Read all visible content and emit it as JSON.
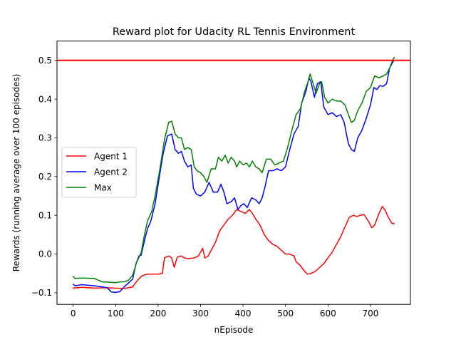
{
  "chart_data": {
    "type": "line",
    "title": "Reward plot for Udacity RL Tennis Environment",
    "xlabel": "nEpisode",
    "ylabel": "Rewards (running average over 100 episodes)",
    "xlim": [
      -38,
      794
    ],
    "ylim": [
      -0.13,
      0.55
    ],
    "xticks": [
      0,
      100,
      200,
      300,
      400,
      500,
      600,
      700
    ],
    "xtick_labels": [
      "0",
      "100",
      "200",
      "300",
      "400",
      "500",
      "600",
      "700"
    ],
    "yticks": [
      -0.1,
      0.0,
      0.1,
      0.2,
      0.3,
      0.4,
      0.5
    ],
    "ytick_labels": [
      "−0.1",
      "0.0",
      "0.1",
      "0.2",
      "0.3",
      "0.4",
      "0.5"
    ],
    "grid": false,
    "legend_position": "center-left",
    "reference_line": {
      "y": 0.5,
      "color": "#ff0000"
    },
    "series": [
      {
        "name": "Agent 1",
        "color": "#ff0000",
        "points": [
          [
            0,
            -0.088
          ],
          [
            20,
            -0.086
          ],
          [
            50,
            -0.088
          ],
          [
            80,
            -0.087
          ],
          [
            100,
            -0.088
          ],
          [
            120,
            -0.089
          ],
          [
            140,
            -0.085
          ],
          [
            150,
            -0.07
          ],
          [
            160,
            -0.058
          ],
          [
            170,
            -0.053
          ],
          [
            180,
            -0.052
          ],
          [
            200,
            -0.052
          ],
          [
            210,
            -0.05
          ],
          [
            215,
            -0.01
          ],
          [
            225,
            -0.005
          ],
          [
            232,
            -0.01
          ],
          [
            238,
            -0.034
          ],
          [
            245,
            -0.008
          ],
          [
            255,
            -0.005
          ],
          [
            262,
            -0.01
          ],
          [
            270,
            -0.012
          ],
          [
            285,
            -0.01
          ],
          [
            295,
            -0.005
          ],
          [
            305,
            0.015
          ],
          [
            310,
            -0.01
          ],
          [
            318,
            -0.005
          ],
          [
            325,
            0.01
          ],
          [
            335,
            0.03
          ],
          [
            345,
            0.06
          ],
          [
            355,
            0.075
          ],
          [
            365,
            0.09
          ],
          [
            375,
            0.1
          ],
          [
            385,
            0.115
          ],
          [
            395,
            0.11
          ],
          [
            405,
            0.105
          ],
          [
            415,
            0.115
          ],
          [
            422,
            0.105
          ],
          [
            430,
            0.09
          ],
          [
            440,
            0.075
          ],
          [
            450,
            0.05
          ],
          [
            460,
            0.035
          ],
          [
            470,
            0.025
          ],
          [
            480,
            0.02
          ],
          [
            490,
            0.01
          ],
          [
            500,
            0.0
          ],
          [
            510,
            0.0
          ],
          [
            520,
            -0.005
          ],
          [
            525,
            -0.02
          ],
          [
            535,
            -0.03
          ],
          [
            545,
            -0.045
          ],
          [
            552,
            -0.052
          ],
          [
            560,
            -0.05
          ],
          [
            570,
            -0.045
          ],
          [
            580,
            -0.035
          ],
          [
            590,
            -0.025
          ],
          [
            600,
            -0.01
          ],
          [
            610,
            0.005
          ],
          [
            620,
            0.025
          ],
          [
            630,
            0.045
          ],
          [
            640,
            0.07
          ],
          [
            650,
            0.095
          ],
          [
            660,
            0.1
          ],
          [
            668,
            0.097
          ],
          [
            676,
            0.1
          ],
          [
            685,
            0.102
          ],
          [
            695,
            0.085
          ],
          [
            703,
            0.068
          ],
          [
            710,
            0.075
          ],
          [
            720,
            0.105
          ],
          [
            728,
            0.123
          ],
          [
            735,
            0.112
          ],
          [
            742,
            0.095
          ],
          [
            750,
            0.08
          ],
          [
            756,
            0.078
          ]
        ]
      },
      {
        "name": "Agent 2",
        "color": "#0000ff",
        "points": [
          [
            0,
            -0.078
          ],
          [
            5,
            -0.082
          ],
          [
            20,
            -0.079
          ],
          [
            50,
            -0.082
          ],
          [
            70,
            -0.085
          ],
          [
            80,
            -0.087
          ],
          [
            90,
            -0.098
          ],
          [
            100,
            -0.099
          ],
          [
            110,
            -0.097
          ],
          [
            120,
            -0.085
          ],
          [
            130,
            -0.075
          ],
          [
            140,
            -0.065
          ],
          [
            148,
            -0.025
          ],
          [
            155,
            -0.005
          ],
          [
            160,
            -0.003
          ],
          [
            168,
            0.035
          ],
          [
            175,
            0.065
          ],
          [
            183,
            0.085
          ],
          [
            193,
            0.13
          ],
          [
            203,
            0.2
          ],
          [
            212,
            0.26
          ],
          [
            222,
            0.305
          ],
          [
            232,
            0.31
          ],
          [
            240,
            0.27
          ],
          [
            248,
            0.26
          ],
          [
            255,
            0.265
          ],
          [
            262,
            0.24
          ],
          [
            270,
            0.225
          ],
          [
            278,
            0.23
          ],
          [
            283,
            0.17
          ],
          [
            290,
            0.155
          ],
          [
            300,
            0.15
          ],
          [
            310,
            0.16
          ],
          [
            320,
            0.185
          ],
          [
            330,
            0.16
          ],
          [
            340,
            0.16
          ],
          [
            348,
            0.18
          ],
          [
            355,
            0.16
          ],
          [
            362,
            0.13
          ],
          [
            372,
            0.135
          ],
          [
            380,
            0.145
          ],
          [
            388,
            0.115
          ],
          [
            395,
            0.125
          ],
          [
            402,
            0.13
          ],
          [
            410,
            0.12
          ],
          [
            420,
            0.145
          ],
          [
            430,
            0.14
          ],
          [
            438,
            0.13
          ],
          [
            445,
            0.145
          ],
          [
            452,
            0.175
          ],
          [
            460,
            0.215
          ],
          [
            470,
            0.215
          ],
          [
            480,
            0.22
          ],
          [
            490,
            0.215
          ],
          [
            500,
            0.225
          ],
          [
            510,
            0.27
          ],
          [
            520,
            0.31
          ],
          [
            530,
            0.33
          ],
          [
            538,
            0.39
          ],
          [
            548,
            0.42
          ],
          [
            555,
            0.455
          ],
          [
            560,
            0.445
          ],
          [
            568,
            0.405
          ],
          [
            575,
            0.44
          ],
          [
            583,
            0.445
          ],
          [
            590,
            0.38
          ],
          [
            600,
            0.36
          ],
          [
            610,
            0.365
          ],
          [
            620,
            0.355
          ],
          [
            630,
            0.36
          ],
          [
            638,
            0.34
          ],
          [
            648,
            0.285
          ],
          [
            655,
            0.27
          ],
          [
            662,
            0.265
          ],
          [
            670,
            0.3
          ],
          [
            680,
            0.32
          ],
          [
            690,
            0.35
          ],
          [
            700,
            0.385
          ],
          [
            708,
            0.43
          ],
          [
            715,
            0.425
          ],
          [
            722,
            0.435
          ],
          [
            730,
            0.433
          ],
          [
            738,
            0.44
          ],
          [
            745,
            0.48
          ],
          [
            752,
            0.495
          ],
          [
            756,
            0.5
          ]
        ]
      },
      {
        "name": "Max",
        "color": "#008000",
        "points": [
          [
            0,
            -0.058
          ],
          [
            5,
            -0.063
          ],
          [
            20,
            -0.062
          ],
          [
            50,
            -0.063
          ],
          [
            60,
            -0.068
          ],
          [
            70,
            -0.072
          ],
          [
            90,
            -0.073
          ],
          [
            100,
            -0.074
          ],
          [
            110,
            -0.072
          ],
          [
            120,
            -0.072
          ],
          [
            130,
            -0.068
          ],
          [
            140,
            -0.055
          ],
          [
            150,
            -0.02
          ],
          [
            160,
            0.003
          ],
          [
            168,
            0.05
          ],
          [
            175,
            0.085
          ],
          [
            185,
            0.11
          ],
          [
            193,
            0.15
          ],
          [
            205,
            0.225
          ],
          [
            215,
            0.295
          ],
          [
            225,
            0.34
          ],
          [
            232,
            0.343
          ],
          [
            240,
            0.31
          ],
          [
            248,
            0.3
          ],
          [
            255,
            0.3
          ],
          [
            262,
            0.27
          ],
          [
            270,
            0.275
          ],
          [
            278,
            0.27
          ],
          [
            285,
            0.225
          ],
          [
            292,
            0.215
          ],
          [
            300,
            0.21
          ],
          [
            308,
            0.2
          ],
          [
            315,
            0.185
          ],
          [
            325,
            0.22
          ],
          [
            335,
            0.22
          ],
          [
            342,
            0.25
          ],
          [
            350,
            0.24
          ],
          [
            358,
            0.255
          ],
          [
            365,
            0.235
          ],
          [
            372,
            0.25
          ],
          [
            380,
            0.24
          ],
          [
            385,
            0.225
          ],
          [
            392,
            0.24
          ],
          [
            400,
            0.23
          ],
          [
            408,
            0.235
          ],
          [
            415,
            0.225
          ],
          [
            422,
            0.24
          ],
          [
            430,
            0.225
          ],
          [
            438,
            0.22
          ],
          [
            445,
            0.21
          ],
          [
            455,
            0.245
          ],
          [
            465,
            0.245
          ],
          [
            475,
            0.23
          ],
          [
            485,
            0.235
          ],
          [
            495,
            0.24
          ],
          [
            505,
            0.275
          ],
          [
            515,
            0.32
          ],
          [
            525,
            0.36
          ],
          [
            535,
            0.375
          ],
          [
            545,
            0.42
          ],
          [
            553,
            0.445
          ],
          [
            558,
            0.465
          ],
          [
            565,
            0.44
          ],
          [
            572,
            0.415
          ],
          [
            580,
            0.44
          ],
          [
            585,
            0.445
          ],
          [
            592,
            0.405
          ],
          [
            600,
            0.39
          ],
          [
            610,
            0.4
          ],
          [
            620,
            0.395
          ],
          [
            630,
            0.395
          ],
          [
            640,
            0.385
          ],
          [
            648,
            0.36
          ],
          [
            655,
            0.34
          ],
          [
            662,
            0.345
          ],
          [
            670,
            0.37
          ],
          [
            680,
            0.39
          ],
          [
            690,
            0.42
          ],
          [
            700,
            0.43
          ],
          [
            710,
            0.46
          ],
          [
            720,
            0.455
          ],
          [
            730,
            0.46
          ],
          [
            738,
            0.465
          ],
          [
            745,
            0.48
          ],
          [
            752,
            0.5
          ],
          [
            756,
            0.508
          ]
        ]
      }
    ]
  }
}
